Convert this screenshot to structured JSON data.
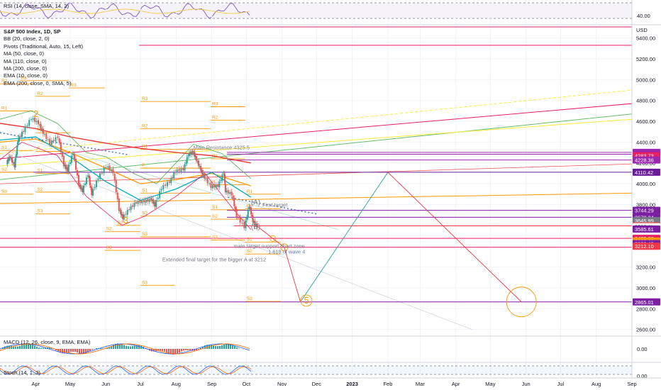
{
  "rsi_panel": {
    "label": "RSI (14, close, SMA, 14, 2)",
    "ticks": [
      {
        "label": "40.00",
        "y": 40
      }
    ]
  },
  "main": {
    "title": "S&P 500 Index, 1D, SP",
    "currency": "USD",
    "indicators": [
      "BB (20, close, 2, 0)",
      "Pivots (Traditional, Auto, 15, Left)",
      "MA (50, close, 0)",
      "MA (110, close, 0)",
      "MA (200, close, 0)",
      "EMA (10, close, 0)",
      "EMA (200, close, 0, SMA, 5)"
    ],
    "y_ticks": [
      "5400.00",
      "5200.00",
      "5000.00",
      "4800.00",
      "4600.00",
      "4400.00",
      "4200.00",
      "4000.00",
      "3800.00",
      "3600.00",
      "3400.00",
      "3200.00",
      "3000.00",
      "2800.00",
      "2600.00"
    ],
    "price_badges": [
      {
        "label": "4301.34",
        "value": 4301.34,
        "color": "#9c27b0"
      },
      {
        "label": "4283.73",
        "value": 4283.73,
        "color": "#9c27b0"
      },
      {
        "label": "4283.73",
        "value": 4270.0,
        "color": "#e91e63"
      },
      {
        "label": "4228.36",
        "value": 4228.36,
        "color": "#9c27b0"
      },
      {
        "label": "4110.42",
        "value": 4110.42,
        "color": "#6a1b9a"
      },
      {
        "label": "3744.29",
        "value": 3744.29,
        "color": "#7b1fa2"
      },
      {
        "label": "3678.34",
        "value": 3678.34,
        "color": "#7b1fa2"
      },
      {
        "label": "3645.99",
        "value": 3645.99,
        "color": "#787b86"
      },
      {
        "label": "3595.69",
        "value": 3595.69,
        "color": "#f23645"
      },
      {
        "label": "3588.11",
        "value": 3588.11,
        "color": "#ffffff"
      },
      {
        "label": "3585.61",
        "value": 3565.0,
        "color": "#7b1fa2"
      },
      {
        "label": "3475.32",
        "value": 3475.32,
        "color": "#e91e63"
      },
      {
        "label": "3393.92",
        "value": 3450.0,
        "color": "#ff9800"
      },
      {
        "label": "3389.49",
        "value": 3425.0,
        "color": "#7b1fa2"
      },
      {
        "label": "3212.10",
        "value": 3400.0,
        "color": "#f23645"
      },
      {
        "label": "2865.01",
        "value": 2865.01,
        "color": "#7b1fa2"
      }
    ],
    "annotations": [
      {
        "text": "First target",
        "date": "2022-10-15",
        "price": 3780
      },
      {
        "text": "main target support chart zone",
        "date": "2022-09-20",
        "price": 3385
      },
      {
        "text": "1.618 of wave 4",
        "date": "2022-10-20",
        "price": 3330
      },
      {
        "text": "Extended final target for the bigger A at 3212",
        "date": "2022-07-20",
        "price": 3255
      },
      {
        "text": "Main Resistance 4325.5",
        "date": "2022-08-16",
        "price": 4330
      }
    ],
    "wave_labels": [
      {
        "text": "2",
        "date": "2022-03-30",
        "price": 4640
      },
      {
        "text": "3",
        "date": "2022-06-16",
        "price": 3620
      },
      {
        "text": "(A)",
        "date": "2022-10-05",
        "price": 3800
      },
      {
        "text": "(B)",
        "date": "2022-10-05",
        "price": 3565
      },
      {
        "text": "5",
        "date": "2022-11-20",
        "price": 2850
      }
    ],
    "pivot_labels": [
      "R3",
      "R2",
      "R1",
      "P",
      "S1",
      "S2",
      "S3"
    ]
  },
  "macd_panel": {
    "label": "MACD (12, 26, close, 9, EMA, EMA)",
    "ticks": [
      {
        "label": "0.00",
        "y": 0
      }
    ]
  },
  "stoch_panel": {
    "label": "Stoch (14, 1, 3)",
    "ticks": [
      {
        "label": "0.00",
        "y": 0
      }
    ]
  },
  "x_axis": {
    "ticks": [
      {
        "label": "Apr",
        "date": "2022-04-01"
      },
      {
        "label": "May",
        "date": "2022-05-01"
      },
      {
        "label": "Jun",
        "date": "2022-06-01"
      },
      {
        "label": "Jul",
        "date": "2022-07-01"
      },
      {
        "label": "Aug",
        "date": "2022-08-01"
      },
      {
        "label": "Sep",
        "date": "2022-09-01"
      },
      {
        "label": "Oct",
        "date": "2022-10-01"
      },
      {
        "label": "Nov",
        "date": "2022-11-01"
      },
      {
        "label": "Dec",
        "date": "2022-12-01"
      },
      {
        "label": "2023",
        "date": "2023-01-01"
      },
      {
        "label": "Feb",
        "date": "2023-02-01"
      },
      {
        "label": "Mar",
        "date": "2023-03-01"
      },
      {
        "label": "Apr",
        "date": "2023-04-01"
      },
      {
        "label": "May",
        "date": "2023-05-01"
      },
      {
        "label": "Jun",
        "date": "2023-06-01"
      },
      {
        "label": "Jul",
        "date": "2023-07-01"
      },
      {
        "label": "Aug",
        "date": "2023-08-01"
      },
      {
        "label": "Sep",
        "date": "2023-09-01"
      }
    ]
  },
  "chart_data": {
    "type": "candlestick",
    "title": "S&P 500 Index, 1D, SP",
    "ylabel": "USD",
    "ylim": [
      2550,
      5520
    ],
    "xlim": [
      "2022-03-01",
      "2023-09-01"
    ],
    "grid": true,
    "price_series": [
      {
        "date": "2022-03-07",
        "price": 4200
      },
      {
        "date": "2022-03-10",
        "price": 4260
      },
      {
        "date": "2022-03-14",
        "price": 4170
      },
      {
        "date": "2022-03-17",
        "price": 4420
      },
      {
        "date": "2022-03-22",
        "price": 4510
      },
      {
        "date": "2022-03-29",
        "price": 4630
      },
      {
        "date": "2022-04-04",
        "price": 4580
      },
      {
        "date": "2022-04-08",
        "price": 4490
      },
      {
        "date": "2022-04-14",
        "price": 4390
      },
      {
        "date": "2022-04-21",
        "price": 4450
      },
      {
        "date": "2022-04-26",
        "price": 4180
      },
      {
        "date": "2022-04-29",
        "price": 4130
      },
      {
        "date": "2022-05-04",
        "price": 4300
      },
      {
        "date": "2022-05-09",
        "price": 3990
      },
      {
        "date": "2022-05-12",
        "price": 3930
      },
      {
        "date": "2022-05-17",
        "price": 4090
      },
      {
        "date": "2022-05-20",
        "price": 3900
      },
      {
        "date": "2022-05-26",
        "price": 4060
      },
      {
        "date": "2022-06-02",
        "price": 4170
      },
      {
        "date": "2022-06-08",
        "price": 4110
      },
      {
        "date": "2022-06-13",
        "price": 3750
      },
      {
        "date": "2022-06-16",
        "price": 3670
      },
      {
        "date": "2022-06-22",
        "price": 3760
      },
      {
        "date": "2022-06-28",
        "price": 3820
      },
      {
        "date": "2022-07-05",
        "price": 3830
      },
      {
        "date": "2022-07-11",
        "price": 3850
      },
      {
        "date": "2022-07-14",
        "price": 3790
      },
      {
        "date": "2022-07-20",
        "price": 3960
      },
      {
        "date": "2022-07-27",
        "price": 4020
      },
      {
        "date": "2022-08-01",
        "price": 4120
      },
      {
        "date": "2022-08-08",
        "price": 4140
      },
      {
        "date": "2022-08-12",
        "price": 4280
      },
      {
        "date": "2022-08-16",
        "price": 4305
      },
      {
        "date": "2022-08-19",
        "price": 4230
      },
      {
        "date": "2022-08-23",
        "price": 4130
      },
      {
        "date": "2022-08-26",
        "price": 4060
      },
      {
        "date": "2022-09-01",
        "price": 3970
      },
      {
        "date": "2022-09-07",
        "price": 3980
      },
      {
        "date": "2022-09-12",
        "price": 4110
      },
      {
        "date": "2022-09-13",
        "price": 3930
      },
      {
        "date": "2022-09-19",
        "price": 3900
      },
      {
        "date": "2022-09-23",
        "price": 3690
      },
      {
        "date": "2022-09-30",
        "price": 3585
      },
      {
        "date": "2022-10-04",
        "price": 3790
      },
      {
        "date": "2022-10-07",
        "price": 3640
      },
      {
        "date": "2022-10-11",
        "price": 3588
      }
    ],
    "levels": [
      {
        "name": "Main Resistance",
        "value": 4325.5
      },
      {
        "name": "First target",
        "value": 3744.29
      },
      {
        "name": "Extended final target",
        "value": 3212
      },
      {
        "name": "1.618 of wave 4",
        "value": 3389.49
      }
    ],
    "projection": [
      {
        "date": "2022-10-11",
        "price": 3588
      },
      {
        "date": "2022-10-24",
        "price": 3475
      },
      {
        "date": "2022-11-03",
        "price": 3389
      },
      {
        "date": "2022-11-17",
        "price": 2865
      },
      {
        "date": "2023-02-01",
        "price": 4110
      },
      {
        "date": "2023-05-28",
        "price": 2865
      }
    ]
  }
}
